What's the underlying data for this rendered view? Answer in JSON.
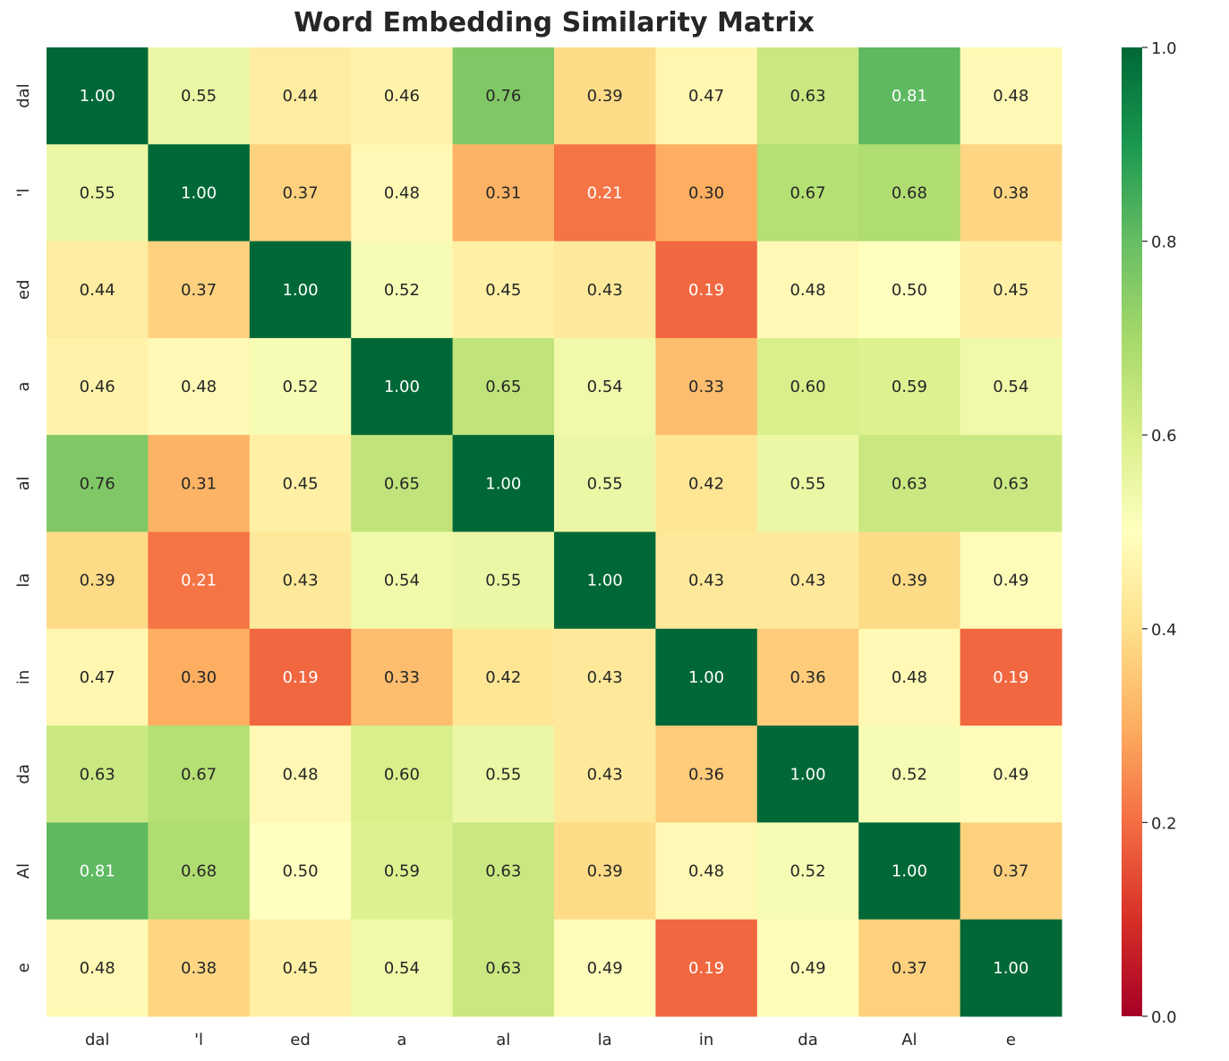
{
  "chart_data": {
    "type": "heatmap",
    "title": "Word Embedding Similarity Matrix",
    "x_labels": [
      "dal",
      "'l",
      "ed",
      "a",
      "al",
      "la",
      "in",
      "da",
      "Al",
      "e"
    ],
    "y_labels": [
      "dal",
      "'l",
      "ed",
      "a",
      "al",
      "la",
      "in",
      "da",
      "Al",
      "e"
    ],
    "values": [
      [
        1.0,
        0.55,
        0.44,
        0.46,
        0.76,
        0.39,
        0.47,
        0.63,
        0.81,
        0.48
      ],
      [
        0.55,
        1.0,
        0.37,
        0.48,
        0.31,
        0.21,
        0.3,
        0.67,
        0.68,
        0.38
      ],
      [
        0.44,
        0.37,
        1.0,
        0.52,
        0.45,
        0.43,
        0.19,
        0.48,
        0.5,
        0.45
      ],
      [
        0.46,
        0.48,
        0.52,
        1.0,
        0.65,
        0.54,
        0.33,
        0.6,
        0.59,
        0.54
      ],
      [
        0.76,
        0.31,
        0.45,
        0.65,
        1.0,
        0.55,
        0.42,
        0.55,
        0.63,
        0.63
      ],
      [
        0.39,
        0.21,
        0.43,
        0.54,
        0.55,
        1.0,
        0.43,
        0.43,
        0.39,
        0.49
      ],
      [
        0.47,
        0.3,
        0.19,
        0.33,
        0.42,
        0.43,
        1.0,
        0.36,
        0.48,
        0.19
      ],
      [
        0.63,
        0.67,
        0.48,
        0.6,
        0.55,
        0.43,
        0.36,
        1.0,
        0.52,
        0.49
      ],
      [
        0.81,
        0.68,
        0.5,
        0.59,
        0.63,
        0.39,
        0.48,
        0.52,
        1.0,
        0.37
      ],
      [
        0.48,
        0.38,
        0.45,
        0.54,
        0.63,
        0.49,
        0.19,
        0.49,
        0.37,
        1.0
      ]
    ],
    "colormap": "RdYlGn",
    "colormap_stops": [
      "#a50026",
      "#d73027",
      "#f46d43",
      "#fdae61",
      "#fee08b",
      "#ffffbf",
      "#d9ef8b",
      "#a6d96a",
      "#66bd63",
      "#1a9850",
      "#006837"
    ],
    "vmin": 0.0,
    "vmax": 1.0,
    "colorbar_ticks": [
      "0.0",
      "0.2",
      "0.4",
      "0.6",
      "0.8",
      "1.0"
    ],
    "annotation_format": "2 decimals",
    "grid": false
  }
}
